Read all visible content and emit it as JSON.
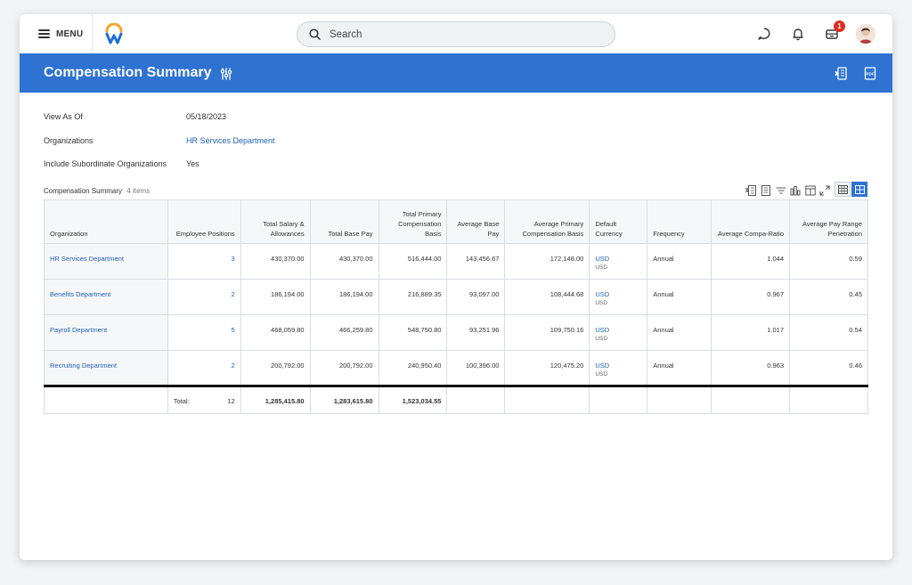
{
  "topbar": {
    "menu_label": "MENU",
    "search_placeholder": "Search",
    "notification_badge": "1",
    "brand_colors": {
      "blue": "#1a6fd8",
      "orange": "#f5a623"
    }
  },
  "header": {
    "title": "Compensation Summary",
    "background": "#2e72d2",
    "icons": [
      "settings-sliders-icon",
      "export-excel-icon",
      "export-pdf-icon"
    ]
  },
  "filters": {
    "view_as_of": {
      "label": "View As Of",
      "value": "05/18/2023"
    },
    "organizations": {
      "label": "Organizations",
      "value": "HR Services Department"
    },
    "include_subordinates": {
      "label": "Include Subordinate Organizations",
      "value": "Yes"
    }
  },
  "grid": {
    "title": "Compensation Summary",
    "count": "4 items",
    "columns": [
      "Organization",
      "Employee Positions",
      "Total Salary & Allowances",
      "Total Base Pay",
      "Total Primary Compensation Basis",
      "Average Base Pay",
      "Average Primary Compensation Basis",
      "Default Currency",
      "Frequency",
      "Average Compa-Ratio",
      "Average Pay Range Penetration"
    ],
    "rows": [
      {
        "org": "HR Services Department",
        "positions": "3",
        "salary": "430,370.00",
        "base": "430,370.00",
        "primary": "516,444.00",
        "avg_base": "143,456.67",
        "avg_primary": "172,148.00",
        "currency": "USD",
        "currency_sub": "USD",
        "frequency": "Annual",
        "compa": "1.044",
        "penetration": "0.59"
      },
      {
        "org": "Benefits Department",
        "positions": "2",
        "salary": "186,194.00",
        "base": "186,194.00",
        "primary": "216,889.35",
        "avg_base": "93,097.00",
        "avg_primary": "108,444.68",
        "currency": "USD",
        "currency_sub": "USD",
        "frequency": "Annual",
        "compa": "0.967",
        "penetration": "0.45"
      },
      {
        "org": "Payroll Department",
        "positions": "5",
        "salary": "468,059.80",
        "base": "466,259.80",
        "primary": "548,750.80",
        "avg_base": "93,251.96",
        "avg_primary": "109,750.16",
        "currency": "USD",
        "currency_sub": "USD",
        "frequency": "Annual",
        "compa": "1.017",
        "penetration": "0.54"
      },
      {
        "org": "Recruiting Department",
        "positions": "2",
        "salary": "200,792.00",
        "base": "200,792.00",
        "primary": "240,950.40",
        "avg_base": "100,396.00",
        "avg_primary": "120,475.20",
        "currency": "USD",
        "currency_sub": "USD",
        "frequency": "Annual",
        "compa": "0.963",
        "penetration": "0.46"
      }
    ],
    "totals": {
      "label": "Total:",
      "positions": "12",
      "salary": "1,285,415.80",
      "base": "1,283,615.80",
      "primary": "1,523,034.55"
    }
  }
}
